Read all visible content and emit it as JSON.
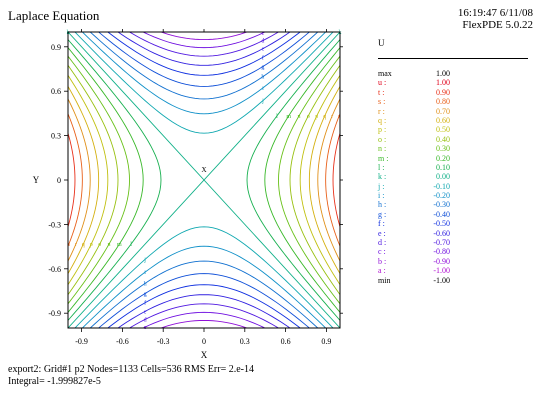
{
  "title": "Laplace Equation",
  "stamp": {
    "time": "16:19:47 6/11/08",
    "version": "FlexPDE 5.0.22"
  },
  "chart_data": {
    "type": "contour",
    "function": "U = x^2 - y^2 (saddle)",
    "xlabel": "X",
    "ylabel": "Y",
    "xlim": [
      -1,
      1
    ],
    "ylim": [
      -1,
      1
    ],
    "x_ticks": [
      "-0.9",
      "-0.6",
      "-0.3",
      "0",
      "0.3",
      "0.6",
      "0.9"
    ],
    "y_ticks": [
      "0.9",
      "0.6",
      "0.3",
      "0",
      "-0.3",
      "-0.6",
      "-0.9"
    ],
    "center_label": "X",
    "legend_title": "U",
    "legend": [
      {
        "key": "max",
        "value": "1.00",
        "color": "#000000"
      },
      {
        "key": "u :",
        "value": "1.00",
        "color": "#e0001a"
      },
      {
        "key": "t :",
        "value": "0.90",
        "color": "#e8301a"
      },
      {
        "key": "s :",
        "value": "0.80",
        "color": "#e8601a"
      },
      {
        "key": "r :",
        "value": "0.70",
        "color": "#e0901a"
      },
      {
        "key": "q :",
        "value": "0.60",
        "color": "#d4b010"
      },
      {
        "key": "p :",
        "value": "0.50",
        "color": "#c0c010"
      },
      {
        "key": "o :",
        "value": "0.40",
        "color": "#98c010"
      },
      {
        "key": "n :",
        "value": "0.30",
        "color": "#68c018"
      },
      {
        "key": "m :",
        "value": "0.20",
        "color": "#38b828"
      },
      {
        "key": "l :",
        "value": "0.10",
        "color": "#18b050"
      },
      {
        "key": "k :",
        "value": "0.00",
        "color": "#10b088"
      },
      {
        "key": "j :",
        "value": "-0.10",
        "color": "#10a8b0"
      },
      {
        "key": "i :",
        "value": "-0.20",
        "color": "#1090c8"
      },
      {
        "key": "h :",
        "value": "-0.30",
        "color": "#1070d0"
      },
      {
        "key": "g :",
        "value": "-0.40",
        "color": "#1050d8"
      },
      {
        "key": "f :",
        "value": "-0.50",
        "color": "#1030e0"
      },
      {
        "key": "e :",
        "value": "-0.60",
        "color": "#3020e0"
      },
      {
        "key": "d :",
        "value": "-0.70",
        "color": "#5018e0"
      },
      {
        "key": "c :",
        "value": "-0.80",
        "color": "#7010e0"
      },
      {
        "key": "b :",
        "value": "-0.90",
        "color": "#9010d8"
      },
      {
        "key": "a :",
        "value": "-1.00",
        "color": "#b010d0"
      },
      {
        "key": "min",
        "value": "-1.00",
        "color": "#000000"
      }
    ]
  },
  "footer": {
    "line1": "export2:  Grid#1  p2  Nodes=1133 Cells=536 RMS Err= 2.e-14",
    "line2": "Integral= -1.999827e-5"
  }
}
